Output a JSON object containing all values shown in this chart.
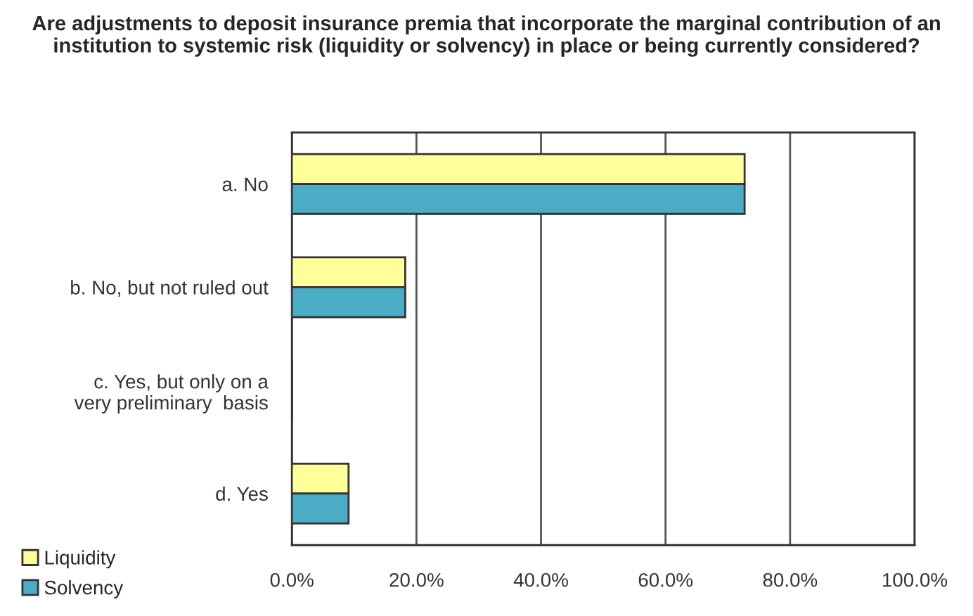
{
  "chart_data": {
    "type": "bar",
    "orientation": "horizontal",
    "title": "Are adjustments to deposit insurance premia that incorporate the marginal contribution of an institution to systemic risk (liquidity or solvency) in place or being currently considered?",
    "categories": [
      "a. No",
      "b. No, but not ruled out",
      "c. Yes, but only on a\nvery preliminary  basis",
      "d. Yes"
    ],
    "series": [
      {
        "name": "Liquidity",
        "color": "#ffff99",
        "values": [
          72.7,
          18.2,
          0,
          9.1
        ]
      },
      {
        "name": "Solvency",
        "color": "#4bacc6",
        "values": [
          72.7,
          18.2,
          0,
          9.1
        ]
      }
    ],
    "xlim": [
      0,
      100
    ],
    "xticks": [
      {
        "value": 0,
        "label": "0.0%"
      },
      {
        "value": 20,
        "label": "20.0%"
      },
      {
        "value": 40,
        "label": "40.0%"
      },
      {
        "value": 60,
        "label": "60.0%"
      },
      {
        "value": 80,
        "label": "80.0%"
      },
      {
        "value": 100,
        "label": "100.0%"
      }
    ],
    "grid": "x",
    "legend": "bottom left"
  }
}
